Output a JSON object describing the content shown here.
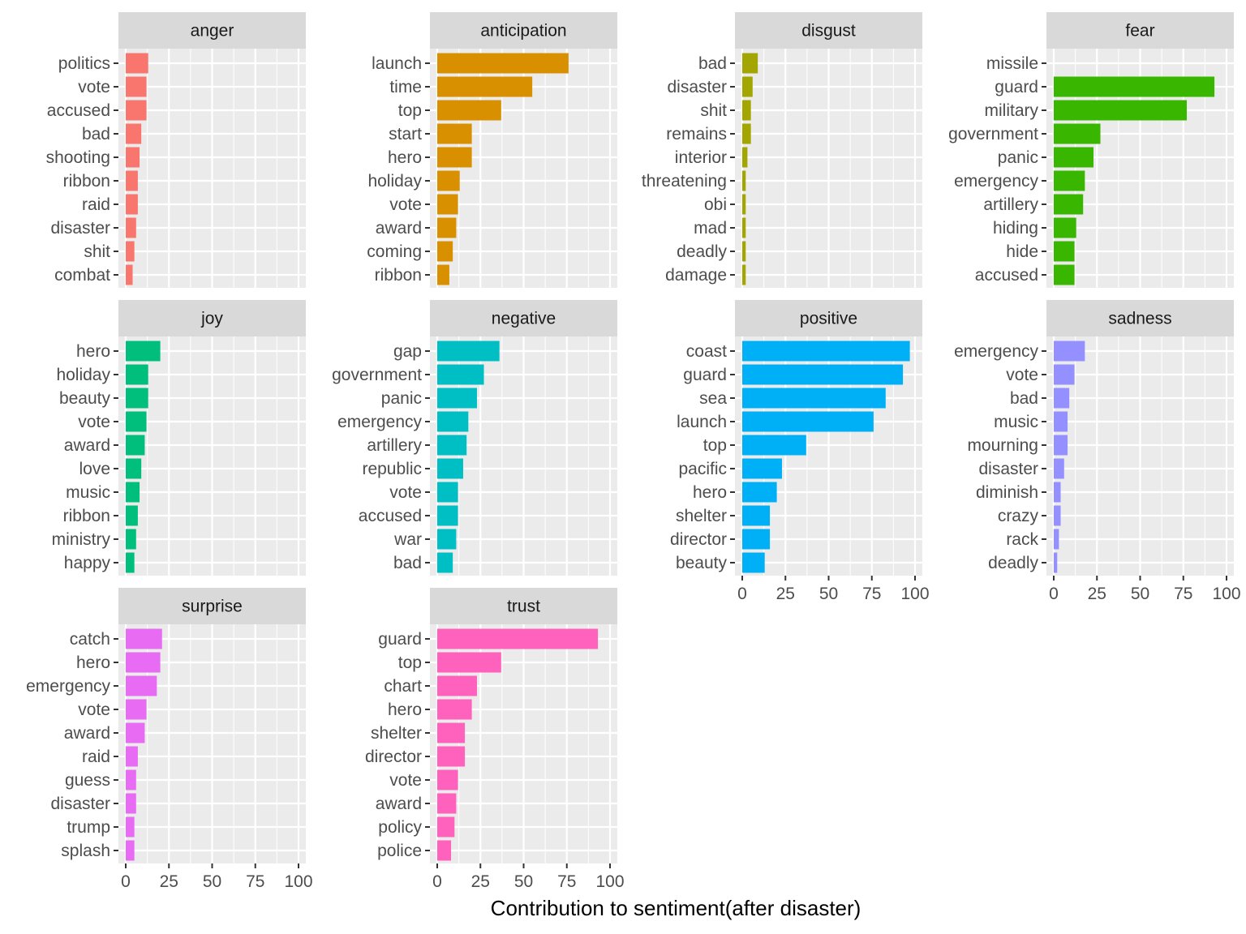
{
  "chart_data": {
    "type": "bar",
    "orientation": "horizontal",
    "layout": "facet_wrap",
    "xlabel": "Contribution to sentiment(after disaster)",
    "ylabel": "",
    "xlim": [
      0,
      100
    ],
    "x_ticks": [
      0,
      25,
      50,
      75,
      100
    ],
    "grid": true,
    "legend": "none",
    "facets": [
      {
        "name": "anger",
        "color": "#F8766D",
        "categories": [
          "politics",
          "vote",
          "accused",
          "bad",
          "shooting",
          "ribbon",
          "raid",
          "disaster",
          "shit",
          "combat"
        ],
        "values": [
          13,
          12,
          12,
          9,
          8,
          7,
          7,
          6,
          5,
          4
        ]
      },
      {
        "name": "anticipation",
        "color": "#D89000",
        "categories": [
          "launch",
          "time",
          "top",
          "start",
          "hero",
          "holiday",
          "vote",
          "award",
          "coming",
          "ribbon"
        ],
        "values": [
          76,
          55,
          37,
          20,
          20,
          13,
          12,
          11,
          9,
          7
        ]
      },
      {
        "name": "disgust",
        "color": "#A3A500",
        "categories": [
          "bad",
          "disaster",
          "shit",
          "remains",
          "interior",
          "threatening",
          "obi",
          "mad",
          "deadly",
          "damage"
        ],
        "values": [
          9,
          6,
          5,
          5,
          3,
          2,
          2,
          2,
          2,
          2
        ]
      },
      {
        "name": "fear",
        "color": "#39B600",
        "categories": [
          "missile",
          "guard",
          "military",
          "government",
          "panic",
          "emergency",
          "artillery",
          "hiding",
          "hide",
          "accused"
        ],
        "values": [
          0,
          93,
          77,
          27,
          23,
          18,
          17,
          13,
          12,
          12
        ]
      },
      {
        "name": "joy",
        "color": "#00BF7D",
        "categories": [
          "hero",
          "holiday",
          "beauty",
          "vote",
          "award",
          "love",
          "music",
          "ribbon",
          "ministry",
          "happy"
        ],
        "values": [
          20,
          13,
          13,
          12,
          11,
          9,
          8,
          7,
          6,
          5
        ]
      },
      {
        "name": "negative",
        "color": "#00BFC4",
        "categories": [
          "gap",
          "government",
          "panic",
          "emergency",
          "artillery",
          "republic",
          "vote",
          "accused",
          "war",
          "bad"
        ],
        "values": [
          36,
          27,
          23,
          18,
          17,
          15,
          12,
          12,
          11,
          9
        ]
      },
      {
        "name": "positive",
        "color": "#00B0F6",
        "categories": [
          "coast",
          "guard",
          "sea",
          "launch",
          "top",
          "pacific",
          "hero",
          "shelter",
          "director",
          "beauty"
        ],
        "values": [
          97,
          93,
          83,
          76,
          37,
          23,
          20,
          16,
          16,
          13
        ]
      },
      {
        "name": "sadness",
        "color": "#9590FF",
        "categories": [
          "emergency",
          "vote",
          "bad",
          "music",
          "mourning",
          "disaster",
          "diminish",
          "crazy",
          "rack",
          "deadly"
        ],
        "values": [
          18,
          12,
          9,
          8,
          8,
          6,
          4,
          4,
          3,
          2
        ]
      },
      {
        "name": "surprise",
        "color": "#E76BF3",
        "categories": [
          "catch",
          "hero",
          "emergency",
          "vote",
          "award",
          "raid",
          "guess",
          "disaster",
          "trump",
          "splash"
        ],
        "values": [
          21,
          20,
          18,
          12,
          11,
          7,
          6,
          6,
          5,
          5
        ]
      },
      {
        "name": "trust",
        "color": "#FF62BC",
        "categories": [
          "guard",
          "top",
          "chart",
          "hero",
          "shelter",
          "director",
          "vote",
          "award",
          "policy",
          "police"
        ],
        "values": [
          93,
          37,
          23,
          20,
          16,
          16,
          12,
          11,
          10,
          8
        ]
      }
    ]
  }
}
